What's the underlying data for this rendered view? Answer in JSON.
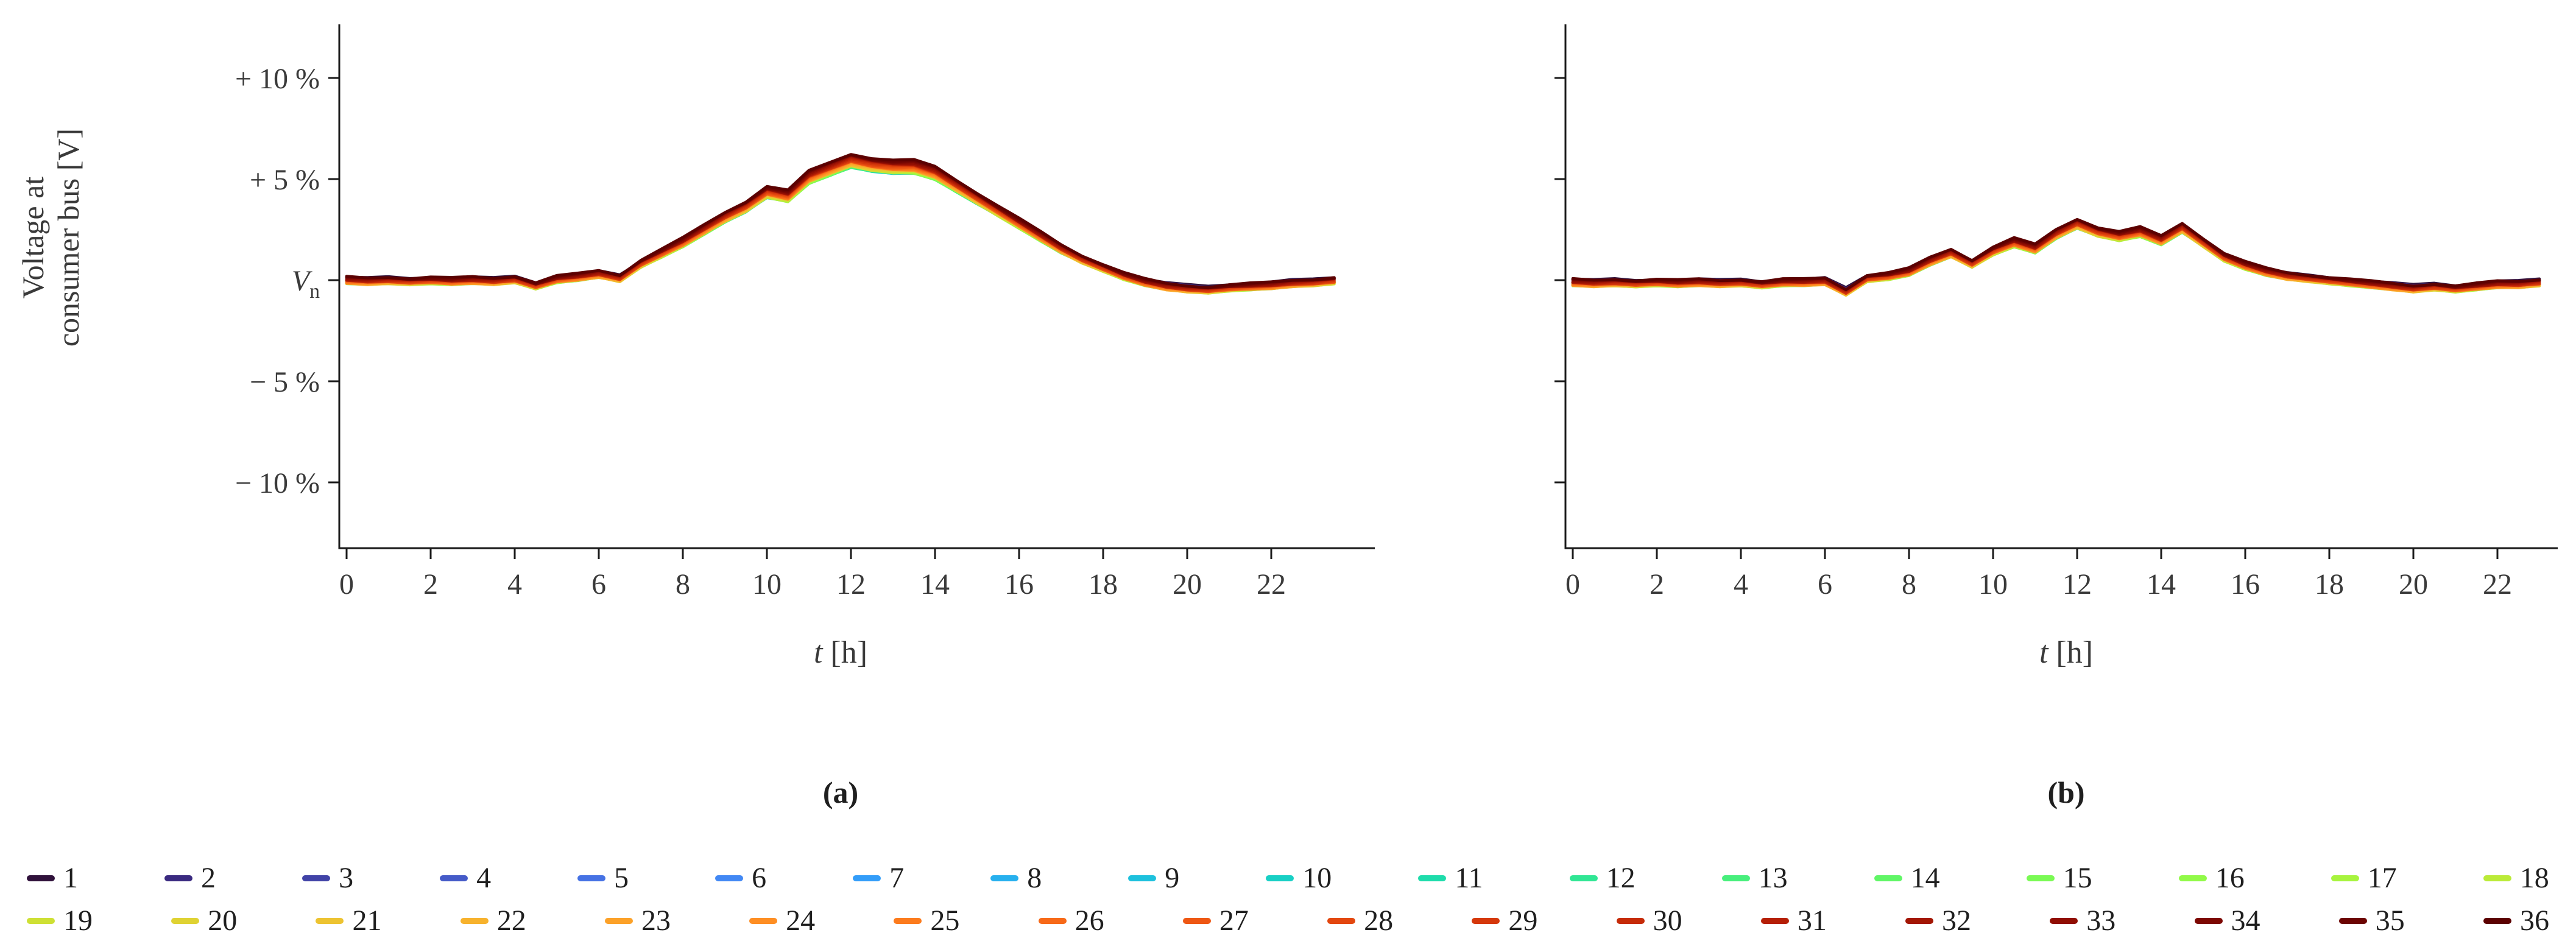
{
  "figure": {
    "ylabel": {
      "line1": "Voltage at",
      "line2": "consumer bus [V]"
    },
    "xlabel": {
      "italic": "t",
      "rest": " [h]"
    }
  },
  "chart_data": {
    "type": "line",
    "title": "",
    "xlabel": "t [h]",
    "ylabel": "Voltage at consumer bus [V]",
    "x_ticks": [
      0,
      2,
      4,
      6,
      8,
      10,
      12,
      14,
      16,
      18,
      20,
      22
    ],
    "y_ticks": [
      {
        "text": "+ 10 %",
        "value": 10
      },
      {
        "text": "+ 5 %",
        "value": 5
      },
      {
        "text": "V",
        "sub": "n",
        "value": 0
      },
      {
        "text": "− 5 %",
        "value": -5
      },
      {
        "text": "− 10 %",
        "value": -10
      }
    ],
    "ylim": [
      -13.3,
      12.7
    ],
    "xlim": [
      -0.2,
      24.2
    ],
    "grid": false,
    "legend_position": "bottom",
    "axis_color": "#1a1a1a",
    "text_color": "#3a3a3a",
    "jitter_percent": 0.04,
    "x": [
      0,
      0.5,
      1,
      1.5,
      2,
      2.5,
      3,
      3.5,
      4,
      4.5,
      5,
      5.5,
      6,
      6.5,
      7,
      7.5,
      8,
      8.5,
      9,
      9.5,
      10,
      10.5,
      11,
      11.5,
      12,
      12.5,
      13,
      13.5,
      14,
      14.5,
      15,
      15.5,
      16,
      16.5,
      17,
      17.5,
      18,
      18.5,
      19,
      19.5,
      20,
      20.5,
      21,
      21.5,
      22,
      22.5,
      23,
      23.5
    ],
    "series": [
      {
        "name": "1",
        "color": "#30123B",
        "offset": 0.05,
        "gain": -0.03
      },
      {
        "name": "2",
        "color": "#3A2A80",
        "offset": 0.02,
        "gain": -0.027
      },
      {
        "name": "3",
        "color": "#4143A7",
        "offset": 0.0,
        "gain": -0.024
      },
      {
        "name": "4",
        "color": "#455BC8",
        "offset": -0.03,
        "gain": -0.021
      },
      {
        "name": "5",
        "color": "#4672E4",
        "offset": -0.06,
        "gain": -0.019
      },
      {
        "name": "6",
        "color": "#4288F4",
        "offset": -0.08,
        "gain": -0.016
      },
      {
        "name": "7",
        "color": "#339DF9",
        "offset": -0.1,
        "gain": -0.013
      },
      {
        "name": "8",
        "color": "#27B0EE",
        "offset": -0.13,
        "gain": -0.01
      },
      {
        "name": "9",
        "color": "#1DC1DD",
        "offset": -0.15,
        "gain": -0.007
      },
      {
        "name": "10",
        "color": "#18D0C5",
        "offset": -0.17,
        "gain": -0.004
      },
      {
        "name": "11",
        "color": "#1EDCAB",
        "offset": -0.18,
        "gain": -0.001
      },
      {
        "name": "12",
        "color": "#30E694",
        "offset": -0.2,
        "gain": 0.001
      },
      {
        "name": "13",
        "color": "#47EF7C",
        "offset": -0.21,
        "gain": 0.004
      },
      {
        "name": "14",
        "color": "#60F666",
        "offset": -0.23,
        "gain": 0.007
      },
      {
        "name": "15",
        "color": "#7AFA54",
        "offset": -0.24,
        "gain": 0.01
      },
      {
        "name": "16",
        "color": "#91FA48",
        "offset": -0.24,
        "gain": 0.013
      },
      {
        "name": "17",
        "color": "#A7F43E",
        "offset": -0.25,
        "gain": 0.016
      },
      {
        "name": "18",
        "color": "#BBEB38",
        "offset": -0.25,
        "gain": 0.019
      },
      {
        "name": "19",
        "color": "#CEE034",
        "offset": -0.25,
        "gain": 0.021
      },
      {
        "name": "20",
        "color": "#DFD233",
        "offset": -0.25,
        "gain": 0.024
      },
      {
        "name": "21",
        "color": "#EDC331",
        "offset": -0.24,
        "gain": 0.027
      },
      {
        "name": "22",
        "color": "#F7B22D",
        "offset": -0.24,
        "gain": 0.03
      },
      {
        "name": "23",
        "color": "#FCA128",
        "offset": -0.23,
        "gain": 0.033
      },
      {
        "name": "24",
        "color": "#FE8E23",
        "offset": -0.21,
        "gain": 0.036
      },
      {
        "name": "25",
        "color": "#FC7B1D",
        "offset": -0.2,
        "gain": 0.039
      },
      {
        "name": "26",
        "color": "#F76918",
        "offset": -0.18,
        "gain": 0.041
      },
      {
        "name": "27",
        "color": "#EE5713",
        "offset": -0.17,
        "gain": 0.044
      },
      {
        "name": "28",
        "color": "#E3470F",
        "offset": -0.15,
        "gain": 0.047
      },
      {
        "name": "29",
        "color": "#D5380B",
        "offset": -0.13,
        "gain": 0.05
      },
      {
        "name": "30",
        "color": "#C62B08",
        "offset": -0.1,
        "gain": 0.053
      },
      {
        "name": "31",
        "color": "#B51F06",
        "offset": -0.08,
        "gain": 0.056
      },
      {
        "name": "32",
        "color": "#A31604",
        "offset": -0.06,
        "gain": 0.059
      },
      {
        "name": "33",
        "color": "#900E03",
        "offset": -0.03,
        "gain": 0.061
      },
      {
        "name": "34",
        "color": "#7D0803",
        "offset": 0.0,
        "gain": 0.064
      },
      {
        "name": "35",
        "color": "#6C0402",
        "offset": 0.02,
        "gain": 0.067
      },
      {
        "name": "36",
        "color": "#5C0101",
        "offset": 0.05,
        "gain": 0.07
      }
    ],
    "panels": [
      {
        "name": "a",
        "caption": "(a)",
        "show_y_tick_labels": true,
        "base_values_percent": [
          0.1,
          0.05,
          0.1,
          0.05,
          0.1,
          0.05,
          0.1,
          0.05,
          0.15,
          -0.15,
          0.15,
          0.25,
          0.4,
          0.2,
          0.9,
          1.4,
          1.9,
          2.5,
          3.1,
          3.6,
          4.3,
          4.1,
          5.0,
          5.4,
          5.8,
          5.6,
          5.5,
          5.5,
          5.2,
          4.6,
          4.0,
          3.4,
          2.8,
          2.2,
          1.6,
          1.1,
          0.7,
          0.3,
          0.0,
          -0.2,
          -0.3,
          -0.35,
          -0.25,
          -0.2,
          -0.15,
          -0.05,
          0.0,
          0.1
        ]
      },
      {
        "name": "b",
        "caption": "(b)",
        "show_y_tick_labels": false,
        "base_values_percent": [
          0.0,
          -0.05,
          0.0,
          -0.05,
          0.0,
          -0.05,
          0.0,
          -0.05,
          0.0,
          -0.1,
          0.0,
          0.0,
          0.05,
          -0.45,
          0.2,
          0.3,
          0.5,
          1.0,
          1.4,
          0.9,
          1.5,
          1.9,
          1.6,
          2.3,
          2.8,
          2.4,
          2.2,
          2.4,
          2.0,
          2.6,
          1.9,
          1.2,
          0.8,
          0.5,
          0.3,
          0.2,
          0.1,
          0.0,
          -0.1,
          -0.2,
          -0.3,
          -0.2,
          -0.3,
          -0.2,
          -0.1,
          -0.1,
          0.0,
          0.0
        ]
      }
    ]
  }
}
